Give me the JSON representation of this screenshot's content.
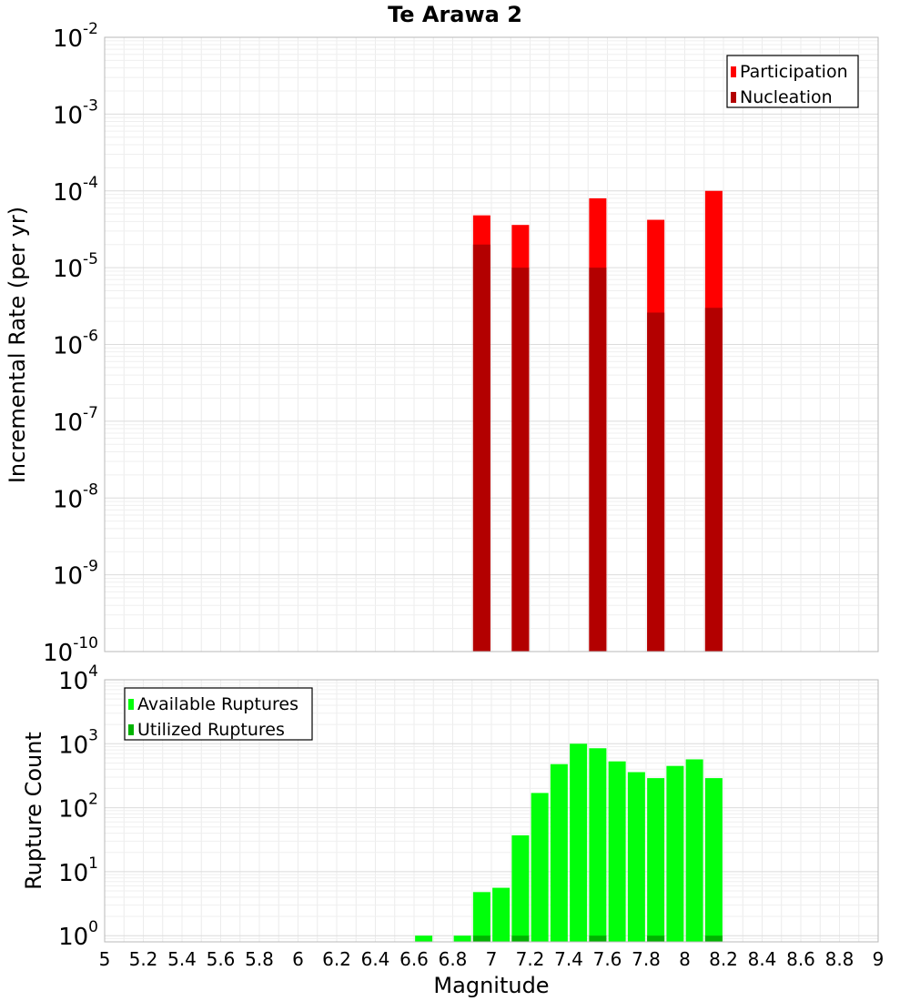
{
  "chart_data": {
    "title": "Te Arawa 2",
    "xlabel": "Magnitude",
    "x_ticks": [
      "5",
      "5.2",
      "5.4",
      "5.6",
      "5.8",
      "6",
      "6.2",
      "6.4",
      "6.6",
      "6.8",
      "7",
      "7.2",
      "7.4",
      "7.6",
      "7.8",
      "8",
      "8.2",
      "8.4",
      "8.6",
      "8.8",
      "9"
    ],
    "xlim": [
      5,
      9
    ],
    "charts": [
      {
        "type": "bar",
        "ylabel": "Incremental Rate (per yr)",
        "yscale": "log",
        "ylim": [
          1e-10,
          0.01
        ],
        "y_tick_exponents": [
          "-10",
          "-9",
          "-8",
          "-7",
          "-6",
          "-5",
          "-4",
          "-3",
          "-2"
        ],
        "legend": {
          "position": "top-right",
          "entries": [
            "Participation",
            "Nucleation"
          ]
        },
        "series": [
          {
            "name": "Participation",
            "color": "#ff0000",
            "points": [
              [
                6.95,
                4.8e-05
              ],
              [
                7.15,
                3.6e-05
              ],
              [
                7.55,
                8e-05
              ],
              [
                7.85,
                4.2e-05
              ],
              [
                8.15,
                0.0001
              ]
            ]
          },
          {
            "name": "Nucleation",
            "color": "#b30000",
            "points": [
              [
                6.95,
                2e-05
              ],
              [
                7.15,
                1e-05
              ],
              [
                7.55,
                1e-05
              ],
              [
                7.85,
                2.6e-06
              ],
              [
                8.15,
                3e-06
              ]
            ]
          }
        ]
      },
      {
        "type": "bar",
        "ylabel": "Rupture Count",
        "yscale": "log",
        "ylim": [
          0.8,
          10000
        ],
        "y_tick_exponents": [
          "0",
          "1",
          "2",
          "3",
          "4"
        ],
        "legend": {
          "position": "top-left",
          "entries": [
            "Available Ruptures",
            "Utilized Ruptures"
          ]
        },
        "series": [
          {
            "name": "Available Ruptures",
            "color": "#00ff0a",
            "points": [
              [
                6.65,
                1
              ],
              [
                6.85,
                1
              ],
              [
                6.95,
                4.8
              ],
              [
                7.05,
                5.6
              ],
              [
                7.15,
                37
              ],
              [
                7.25,
                170
              ],
              [
                7.35,
                480
              ],
              [
                7.45,
                1000
              ],
              [
                7.55,
                850
              ],
              [
                7.65,
                530
              ],
              [
                7.75,
                360
              ],
              [
                7.85,
                290
              ],
              [
                7.95,
                450
              ],
              [
                8.05,
                570
              ],
              [
                8.15,
                290
              ]
            ]
          },
          {
            "name": "Utilized Ruptures",
            "color": "#00b300",
            "points": [
              [
                6.95,
                1
              ],
              [
                7.15,
                1
              ],
              [
                7.55,
                1
              ],
              [
                7.85,
                1
              ],
              [
                8.15,
                1
              ]
            ]
          }
        ]
      }
    ]
  }
}
